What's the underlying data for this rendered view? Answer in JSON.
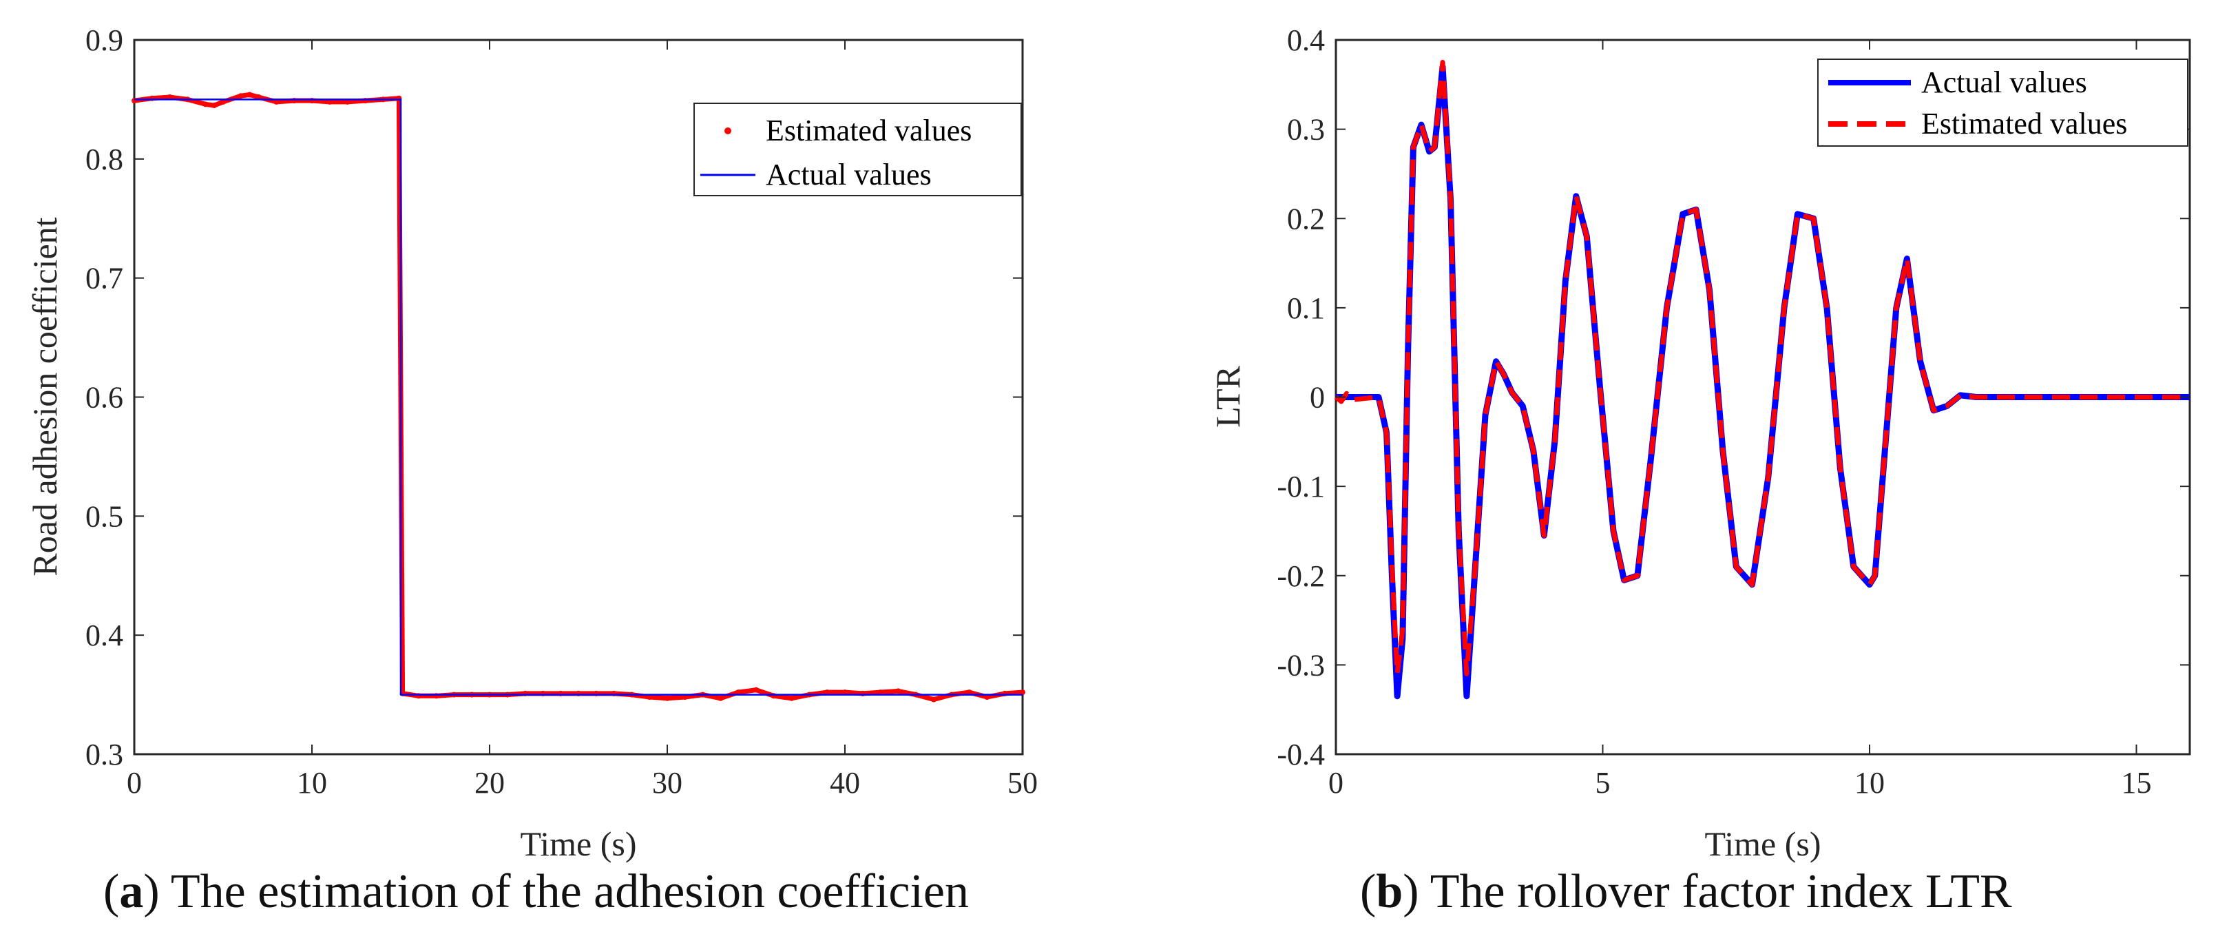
{
  "colors": {
    "estimated": "#ff0000",
    "actual": "#0000ff",
    "axis": "#262626"
  },
  "chart_data": [
    {
      "type": "line",
      "xlabel": "Time (s)",
      "ylabel": "Road adhesion coefficient",
      "xlim": [
        0,
        50
      ],
      "ylim": [
        0.3,
        0.9
      ],
      "xticks": [
        0,
        10,
        20,
        30,
        40,
        50
      ],
      "yticks": [
        0.3,
        0.4,
        0.5,
        0.6,
        0.7,
        0.8,
        0.9
      ],
      "xtick_labels": [
        "0",
        "10",
        "20",
        "30",
        "40",
        "50"
      ],
      "ytick_labels": [
        "0.3",
        "0.4",
        "0.5",
        "0.6",
        "0.7",
        "0.8",
        "0.9"
      ],
      "legend_position": "top-right",
      "series": [
        {
          "name": "Estimated values",
          "style": "dots",
          "x": [
            0,
            1,
            2,
            3,
            4,
            4.5,
            5,
            6,
            6.5,
            7,
            8,
            9,
            10,
            11,
            12,
            13,
            14,
            14.9,
            15.1,
            16,
            17,
            18,
            19,
            20,
            21,
            22,
            23,
            24,
            25,
            26,
            27,
            28,
            29,
            30,
            31,
            32,
            33,
            34,
            35,
            36,
            37,
            38,
            39,
            40,
            41,
            42,
            43,
            44,
            45,
            46,
            47,
            48,
            49,
            50
          ],
          "y": [
            0.849,
            0.851,
            0.852,
            0.85,
            0.846,
            0.845,
            0.848,
            0.853,
            0.854,
            0.852,
            0.848,
            0.849,
            0.849,
            0.848,
            0.848,
            0.849,
            0.85,
            0.851,
            0.351,
            0.349,
            0.349,
            0.35,
            0.35,
            0.35,
            0.35,
            0.351,
            0.351,
            0.351,
            0.351,
            0.351,
            0.351,
            0.35,
            0.348,
            0.347,
            0.348,
            0.35,
            0.347,
            0.352,
            0.354,
            0.349,
            0.347,
            0.35,
            0.352,
            0.352,
            0.351,
            0.352,
            0.353,
            0.35,
            0.346,
            0.35,
            0.352,
            0.348,
            0.351,
            0.352
          ]
        },
        {
          "name": "Actual values",
          "style": "solid",
          "x": [
            0,
            15,
            15,
            50
          ],
          "y": [
            0.85,
            0.85,
            0.35,
            0.35
          ]
        }
      ]
    },
    {
      "type": "line",
      "xlabel": "Time (s)",
      "ylabel": "LTR",
      "xlim": [
        0,
        16
      ],
      "ylim": [
        -0.4,
        0.4
      ],
      "xticks": [
        0,
        5,
        10,
        15
      ],
      "yticks": [
        -0.4,
        -0.3,
        -0.2,
        -0.1,
        0,
        0.1,
        0.2,
        0.3,
        0.4
      ],
      "xtick_labels": [
        "0",
        "5",
        "10",
        "15"
      ],
      "ytick_labels": [
        "-0.4",
        "-0.3",
        "-0.2",
        "-0.1",
        "0",
        "0.1",
        "0.2",
        "0.3",
        "0.4"
      ],
      "legend_position": "top-right",
      "series": [
        {
          "name": "Actual values",
          "style": "solid",
          "x": [
            0,
            0.8,
            0.95,
            1.05,
            1.15,
            1.25,
            1.35,
            1.45,
            1.6,
            1.75,
            1.85,
            2.0,
            2.15,
            2.3,
            2.45,
            2.6,
            2.8,
            3.0,
            3.15,
            3.3,
            3.5,
            3.7,
            3.9,
            4.1,
            4.3,
            4.5,
            4.7,
            4.95,
            5.2,
            5.4,
            5.65,
            5.9,
            6.2,
            6.5,
            6.75,
            7.0,
            7.25,
            7.5,
            7.8,
            8.1,
            8.4,
            8.65,
            8.95,
            9.2,
            9.45,
            9.7,
            10.0,
            10.1,
            10.3,
            10.5,
            10.7,
            10.95,
            11.2,
            11.45,
            11.7,
            12.0,
            16
          ],
          "y": [
            0,
            0,
            -0.04,
            -0.2,
            -0.335,
            -0.27,
            0.05,
            0.28,
            0.305,
            0.275,
            0.28,
            0.37,
            0.22,
            -0.15,
            -0.335,
            -0.2,
            -0.02,
            0.04,
            0.025,
            0.005,
            -0.01,
            -0.06,
            -0.155,
            -0.05,
            0.13,
            0.225,
            0.18,
            0.01,
            -0.15,
            -0.205,
            -0.2,
            -0.07,
            0.1,
            0.205,
            0.21,
            0.12,
            -0.06,
            -0.19,
            -0.21,
            -0.09,
            0.1,
            0.205,
            0.2,
            0.1,
            -0.08,
            -0.19,
            -0.21,
            -0.2,
            -0.05,
            0.1,
            0.155,
            0.04,
            -0.015,
            -0.01,
            0.002,
            0,
            0
          ]
        },
        {
          "name": "Estimated values",
          "style": "dashed",
          "x": [
            0,
            0.1,
            0.2,
            0.3,
            0.8,
            0.95,
            1.05,
            1.15,
            1.25,
            1.35,
            1.45,
            1.6,
            1.75,
            1.85,
            2.0,
            2.15,
            2.3,
            2.45,
            2.6,
            2.8,
            3.0,
            3.15,
            3.3,
            3.5,
            3.7,
            3.9,
            4.1,
            4.3,
            4.5,
            4.7,
            4.95,
            5.2,
            5.4,
            5.65,
            5.9,
            6.2,
            6.5,
            6.75,
            7.0,
            7.25,
            7.5,
            7.8,
            8.1,
            8.4,
            8.65,
            8.95,
            9.2,
            9.45,
            9.7,
            10.0,
            10.1,
            10.3,
            10.5,
            10.7,
            10.95,
            11.2,
            11.45,
            11.7,
            12.0,
            16
          ],
          "y": [
            0,
            -0.005,
            0.004,
            -0.003,
            0,
            -0.04,
            -0.19,
            -0.31,
            -0.26,
            0.05,
            0.28,
            0.305,
            0.275,
            0.28,
            0.375,
            0.22,
            -0.15,
            -0.31,
            -0.2,
            -0.02,
            0.04,
            0.025,
            0.005,
            -0.01,
            -0.06,
            -0.155,
            -0.05,
            0.13,
            0.225,
            0.18,
            0.01,
            -0.15,
            -0.205,
            -0.2,
            -0.07,
            0.1,
            0.205,
            0.21,
            0.12,
            -0.06,
            -0.19,
            -0.21,
            -0.09,
            0.1,
            0.205,
            0.2,
            0.1,
            -0.08,
            -0.19,
            -0.21,
            -0.2,
            -0.05,
            0.1,
            0.155,
            0.04,
            -0.015,
            -0.01,
            0.002,
            0,
            0
          ]
        }
      ]
    }
  ],
  "captions": {
    "a_letter": "a",
    "a_text": "The estimation of the adhesion coefficien",
    "b_letter": "b",
    "b_text": "The rollover factor index LTR"
  }
}
